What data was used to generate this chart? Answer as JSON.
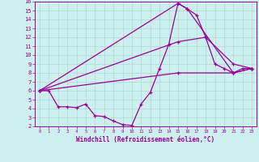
{
  "xlabel": "Windchill (Refroidissement éolien,°C)",
  "xlim": [
    -0.5,
    23.5
  ],
  "ylim": [
    2,
    16
  ],
  "yticks": [
    2,
    3,
    4,
    5,
    6,
    7,
    8,
    9,
    10,
    11,
    12,
    13,
    14,
    15,
    16
  ],
  "xticks": [
    0,
    1,
    2,
    3,
    4,
    5,
    6,
    7,
    8,
    9,
    10,
    11,
    12,
    13,
    14,
    15,
    16,
    17,
    18,
    19,
    20,
    21,
    22,
    23
  ],
  "bg_color": "#cdf0ee",
  "grid_color": "#b0d8d4",
  "line_color": "#990099",
  "line1_x": [
    0,
    1,
    2,
    3,
    4,
    5,
    6,
    7,
    8,
    9,
    10,
    11,
    12,
    13,
    14,
    15,
    16,
    17,
    18,
    19,
    20,
    21,
    22,
    23
  ],
  "line1_y": [
    6.0,
    6.0,
    4.2,
    4.2,
    4.1,
    4.5,
    3.2,
    3.1,
    2.6,
    2.2,
    2.1,
    4.5,
    5.8,
    8.5,
    11.2,
    15.8,
    15.2,
    14.5,
    12.0,
    9.0,
    8.5,
    8.0,
    8.5,
    8.5
  ],
  "line2_x": [
    0,
    15,
    16,
    21,
    23
  ],
  "line2_y": [
    6.0,
    15.8,
    15.2,
    8.0,
    8.5
  ],
  "line3_x": [
    0,
    15,
    18,
    21,
    23
  ],
  "line3_y": [
    6.0,
    11.5,
    12.0,
    9.0,
    8.5
  ],
  "line4_x": [
    0,
    15,
    21,
    23
  ],
  "line4_y": [
    6.0,
    8.0,
    8.0,
    8.5
  ]
}
